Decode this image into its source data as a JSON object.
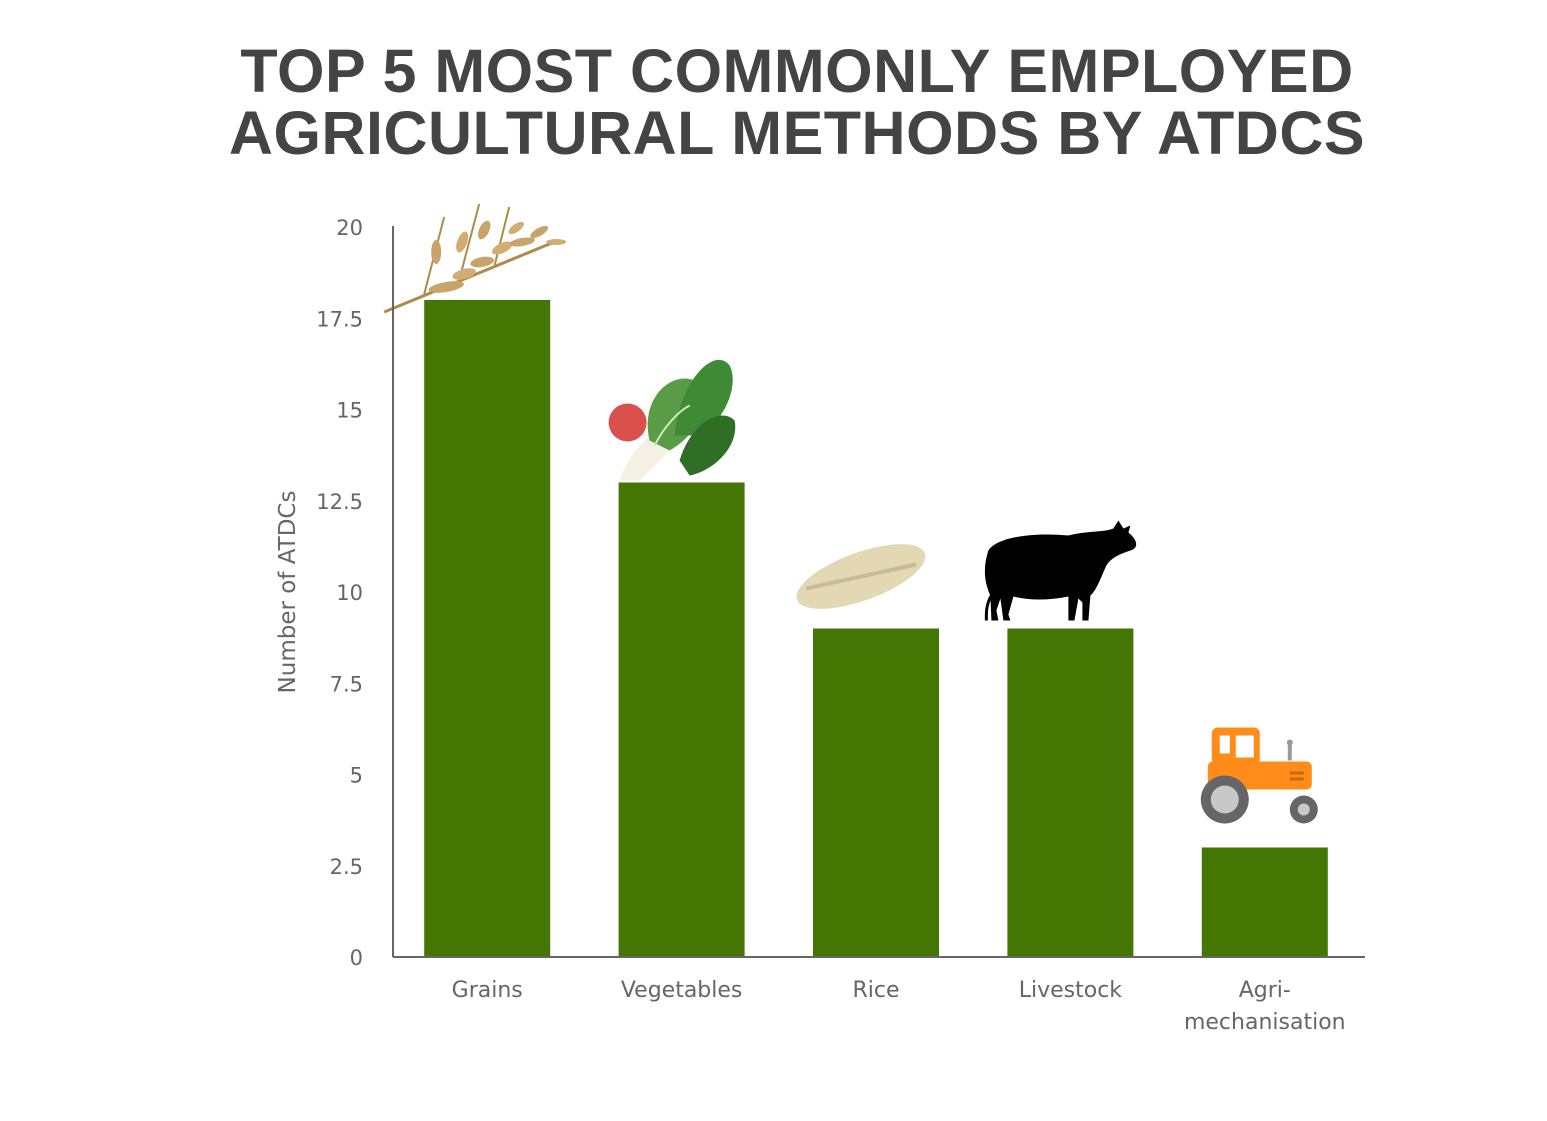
{
  "title_lines": [
    "TOP 5 MOST COMMONLY EMPLOYED",
    "AGRICULTURAL METHODS BY ATDCS"
  ],
  "chart_data": {
    "type": "bar",
    "title": "TOP 5 MOST COMMONLY EMPLOYED AGRICULTURAL METHODS BY ATDCS",
    "xlabel": "",
    "ylabel": "Number of ATDCs",
    "categories": [
      "Grains",
      "Vegetables",
      "Rice",
      "Livestock",
      "Agri-mechanisation"
    ],
    "category_label_lines": [
      [
        "Grains"
      ],
      [
        "Vegetables"
      ],
      [
        "Rice"
      ],
      [
        "Livestock"
      ],
      [
        "Agri-",
        "mechanisation"
      ]
    ],
    "values": [
      18,
      13,
      9,
      9,
      3
    ],
    "ylim": [
      0,
      20
    ],
    "yticks": [
      "0",
      "2.5",
      "5",
      "7.5",
      "10",
      "12.5",
      "15",
      "17.5",
      "20"
    ],
    "grid": false,
    "bar_color": "#447604",
    "axis_color": "#666666",
    "icons": [
      "wheat-icon",
      "vegetables-icon",
      "rice-grain-icon",
      "cow-icon",
      "tractor-icon"
    ]
  }
}
